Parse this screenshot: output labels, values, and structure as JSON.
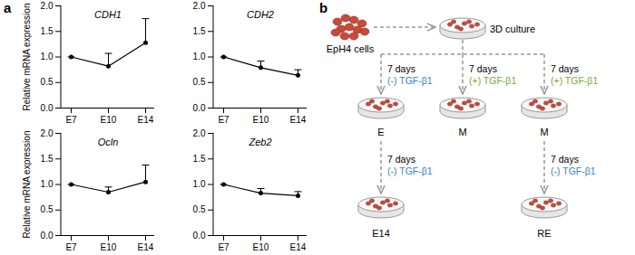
{
  "panel_labels": [
    "a",
    "b"
  ],
  "chart_data": [
    {
      "type": "line",
      "title": "CDH1",
      "y_label": "Relative mRNA expression",
      "color": "#000000",
      "categories": [
        "E7",
        "E10",
        "E14"
      ],
      "values": [
        1.0,
        0.82,
        1.28
      ],
      "errors": [
        0,
        0.25,
        0.47
      ],
      "ylim": [
        0,
        2
      ],
      "yticks": [
        {
          "value": 0,
          "label": "0.0"
        },
        {
          "value": 0.5,
          "label": "0.5"
        },
        {
          "value": 1,
          "label": "1.0"
        },
        {
          "value": 1.5,
          "label": "1.5"
        },
        {
          "value": 2,
          "label": "2.0"
        }
      ]
    },
    {
      "type": "line",
      "title": "CDH2",
      "color": "#000000",
      "categories": [
        "E7",
        "E10",
        "E14"
      ],
      "values": [
        1.0,
        0.79,
        0.64
      ],
      "errors": [
        0,
        0.13,
        0.11
      ],
      "ylim": [
        0,
        2
      ],
      "yticks": [
        {
          "value": 0,
          "label": "0.0"
        },
        {
          "value": 0.5,
          "label": "0.5"
        },
        {
          "value": 1,
          "label": "1.0"
        },
        {
          "value": 1.5,
          "label": "1.5"
        },
        {
          "value": 2,
          "label": "2.0"
        }
      ]
    },
    {
      "type": "line",
      "title": "Ocln",
      "y_label": "Relative mRNA expression",
      "color": "#000000",
      "categories": [
        "E7",
        "E10",
        "E14"
      ],
      "values": [
        1.0,
        0.85,
        1.05
      ],
      "errors": [
        0,
        0.1,
        0.33
      ],
      "ylim": [
        0,
        2
      ],
      "yticks": [
        {
          "value": 0,
          "label": "0.0"
        },
        {
          "value": 0.5,
          "label": "0.5"
        },
        {
          "value": 1,
          "label": "1.0"
        },
        {
          "value": 1.5,
          "label": "1.5"
        },
        {
          "value": 2,
          "label": "2.0"
        }
      ]
    },
    {
      "type": "line",
      "title": "Zeb2",
      "color": "#000000",
      "categories": [
        "E7",
        "E10",
        "E14"
      ],
      "values": [
        1.0,
        0.83,
        0.78
      ],
      "errors": [
        0,
        0.09,
        0.08
      ],
      "ylim": [
        0,
        2
      ],
      "yticks": [
        {
          "value": 0,
          "label": "0.0"
        },
        {
          "value": 0.5,
          "label": "0.5"
        },
        {
          "value": 1,
          "label": "1.0"
        },
        {
          "value": 1.5,
          "label": "1.5"
        },
        {
          "value": 2,
          "label": "2.0"
        }
      ]
    }
  ],
  "diagram": {
    "start": "EpH4 cells",
    "culture": "3D culture",
    "branches": [
      {
        "duration": "7 days",
        "treatment": "(-) TGF-β1",
        "treatment_color": "#3d7fc6",
        "result": "E",
        "followup": {
          "duration": "7 days",
          "treatment": "(-) TGF-β1",
          "treatment_color": "#3d7fc6",
          "result": "E14"
        }
      },
      {
        "duration": "7 days",
        "treatment": "(+) TGF-β1",
        "treatment_color": "#7aa83a",
        "result": "M"
      },
      {
        "duration": "7 days",
        "treatment": "(+) TGF-β1",
        "treatment_color": "#7aa83a",
        "result": "M",
        "followup": {
          "duration": "7 days",
          "treatment": "(-) TGF-β1",
          "treatment_color": "#3d7fc6",
          "result": "RE"
        }
      }
    ]
  }
}
